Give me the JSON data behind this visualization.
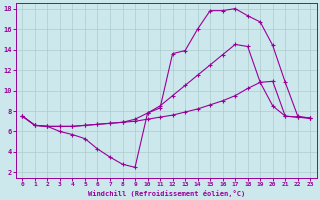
{
  "xlabel": "Windchill (Refroidissement éolien,°C)",
  "bg_color": "#cce8ec",
  "line_color": "#990099",
  "grid_color": "#aacccc",
  "xlim": [
    -0.5,
    23.5
  ],
  "ylim": [
    1.5,
    18.5
  ],
  "xticks": [
    0,
    1,
    2,
    3,
    4,
    5,
    6,
    7,
    8,
    9,
    10,
    11,
    12,
    13,
    14,
    15,
    16,
    17,
    18,
    19,
    20,
    21,
    22,
    23
  ],
  "yticks": [
    2,
    4,
    6,
    8,
    10,
    12,
    14,
    16,
    18
  ],
  "line1_x": [
    0,
    1,
    2,
    3,
    4,
    5,
    6,
    7,
    8,
    9,
    10,
    11,
    12,
    13,
    14,
    15,
    16,
    17,
    18,
    19,
    20,
    21,
    22,
    23
  ],
  "line1_y": [
    7.5,
    6.6,
    6.5,
    6.5,
    6.5,
    6.6,
    6.7,
    6.8,
    6.9,
    7.0,
    7.2,
    7.4,
    7.6,
    7.9,
    8.2,
    8.6,
    9.0,
    9.5,
    10.2,
    10.8,
    10.9,
    7.5,
    7.4,
    7.3
  ],
  "line2_x": [
    0,
    1,
    2,
    3,
    4,
    5,
    6,
    7,
    8,
    9,
    10,
    11,
    12,
    13,
    14,
    15,
    16,
    17,
    18,
    19,
    20,
    21,
    22,
    23
  ],
  "line2_y": [
    7.5,
    6.6,
    6.5,
    6.0,
    5.7,
    5.3,
    4.3,
    3.5,
    2.8,
    2.5,
    7.8,
    8.3,
    13.6,
    13.9,
    16.0,
    17.8,
    17.8,
    18.0,
    17.3,
    16.7,
    14.4,
    10.8,
    7.5,
    7.3
  ],
  "line3_x": [
    0,
    1,
    2,
    3,
    4,
    5,
    6,
    7,
    8,
    9,
    10,
    11,
    12,
    13,
    14,
    15,
    16,
    17,
    18,
    19,
    20,
    21,
    22,
    23
  ],
  "line3_y": [
    7.5,
    6.6,
    6.5,
    6.5,
    6.5,
    6.6,
    6.7,
    6.8,
    6.9,
    7.2,
    7.8,
    8.5,
    9.5,
    10.5,
    11.5,
    12.5,
    13.5,
    14.5,
    14.3,
    10.8,
    8.5,
    7.5,
    7.4,
    7.3
  ]
}
